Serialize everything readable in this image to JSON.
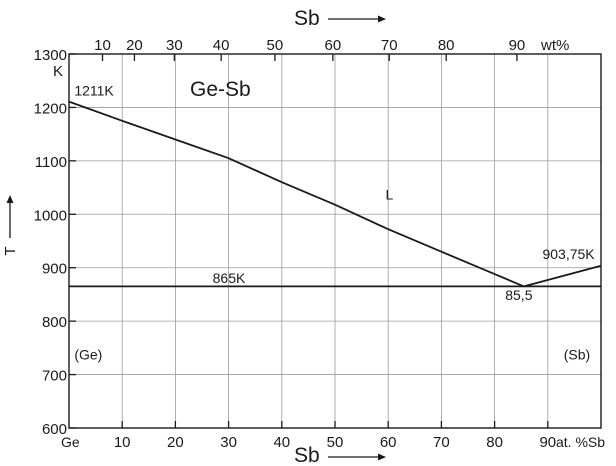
{
  "chart_data": {
    "type": "line",
    "title": "Ge-Sb",
    "xlabel_bottom": "Sb",
    "xunit_bottom": "at. %Sb",
    "xlabel_top": "Sb",
    "xunit_top": "wt%",
    "ylabel": "T",
    "yunit": "K",
    "xlim": [
      0,
      100
    ],
    "ylim": [
      600,
      1300
    ],
    "x_ticks_bottom": [
      10,
      20,
      30,
      40,
      50,
      60,
      70,
      80,
      90
    ],
    "x_ticks_top": [
      10,
      20,
      30,
      40,
      50,
      60,
      70,
      80,
      90
    ],
    "top_tick_positions_at": [
      6.3,
      12.3,
      19.8,
      28.6,
      38.7,
      49.6,
      60.2,
      70.9,
      84.2
    ],
    "y_ticks": [
      600,
      700,
      800,
      900,
      1000,
      1100,
      1200,
      1300
    ],
    "grid": true,
    "series": [
      {
        "x": [
          0,
          10,
          20,
          30,
          40,
          50,
          60,
          70,
          80,
          85.5
        ],
        "y": [
          1211,
          1175,
          1140,
          1105,
          1060,
          1018,
          972,
          930,
          888,
          865
        ]
      },
      {
        "x": [
          85.5,
          100
        ],
        "y": [
          865,
          903.75
        ]
      },
      {
        "x": [
          0,
          100
        ],
        "y": [
          865,
          865
        ]
      }
    ],
    "annotations": [
      {
        "text": "1211K",
        "x": 1,
        "y": 1222
      },
      {
        "text": "903,75K",
        "x": 89,
        "y": 916
      },
      {
        "text": "865K",
        "x": 27,
        "y": 871
      },
      {
        "text": "85,5",
        "x": 82,
        "y": 840
      },
      {
        "text": "L",
        "x": 59.5,
        "y": 1028
      },
      {
        "text": "(Ge)",
        "x": 1,
        "y": 728
      },
      {
        "text": "(Sb)",
        "x": 93,
        "y": 728
      }
    ],
    "end_label_left": "Ge"
  }
}
